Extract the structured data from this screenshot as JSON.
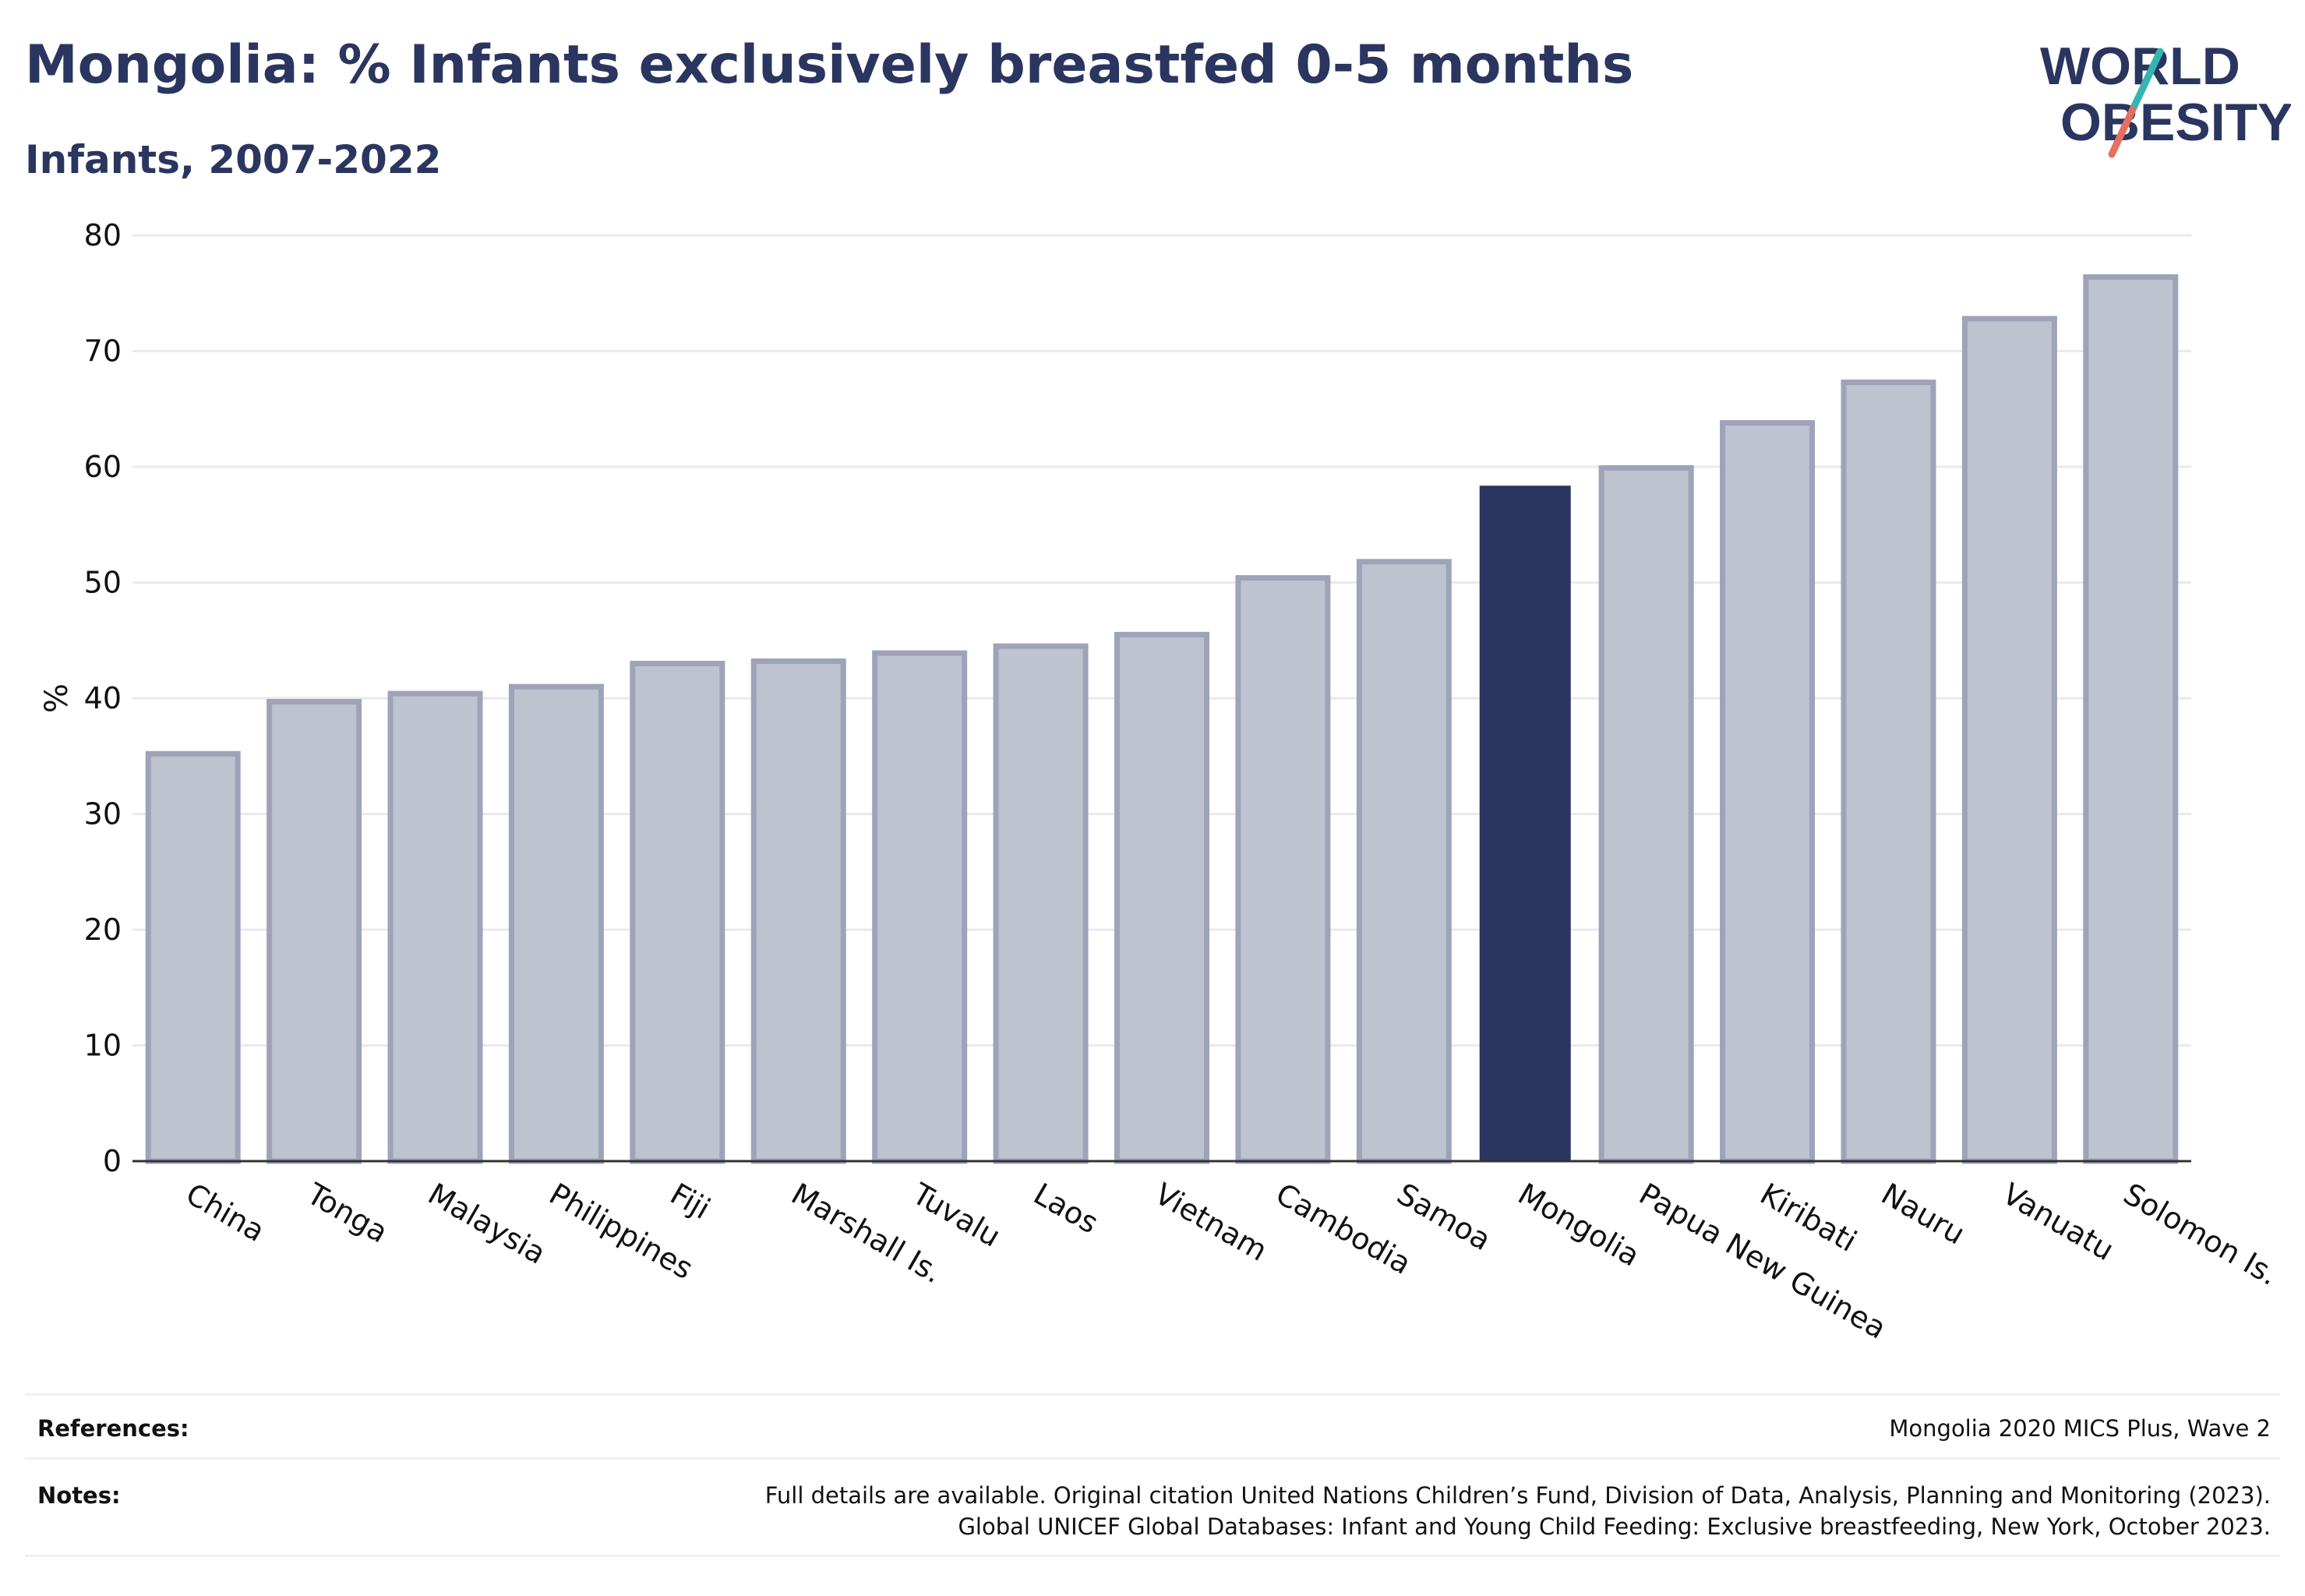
{
  "header": {
    "title": "Mongolia: % Infants exclusively breastfed 0-5 months",
    "subtitle": "Infants, 2007-2022"
  },
  "logo": {
    "line1": "WORLD",
    "line2": "OBESITY",
    "colors": {
      "text": "#2a3560",
      "teal": "#35b5b1",
      "coral": "#e4705f"
    }
  },
  "colors": {
    "bar": "#bfc2cf",
    "bar_border": "#9ea3b8",
    "highlight": "#2a3560",
    "grid": "#e9eaf0",
    "axis": "#333333",
    "tick_text": "#111111"
  },
  "chart_data": {
    "type": "bar",
    "categories": [
      "China",
      "Tonga",
      "Malaysia",
      "Philippines",
      "Fiji",
      "Marshall Is.",
      "Tuvalu",
      "Laos",
      "Vietnam",
      "Cambodia",
      "Samoa",
      "Mongolia",
      "Papua New Guinea",
      "Kiribati",
      "Nauru",
      "Vanuatu",
      "Solomon Is."
    ],
    "values": [
      35.2,
      39.7,
      40.4,
      41.0,
      43.0,
      43.2,
      43.9,
      44.5,
      45.5,
      50.4,
      51.8,
      58.3,
      59.9,
      63.8,
      67.3,
      72.8,
      76.4
    ],
    "highlight": "Mongolia",
    "title": "Mongolia: % Infants exclusively breastfed 0-5 months",
    "subtitle": "Infants, 2007-2022",
    "xlabel": "",
    "ylabel": "%",
    "ylim": [
      0,
      80
    ],
    "yticks": [
      0,
      10,
      20,
      30,
      40,
      50,
      60,
      70,
      80
    ],
    "grid": true
  },
  "footer": {
    "references_label": "References:",
    "references_text": "Mongolia 2020 MICS Plus, Wave 2",
    "notes_label": "Notes:",
    "notes_line1": "Full details are available. Original citation United Nations Children’s Fund, Division of Data, Analysis, Planning and Monitoring (2023).",
    "notes_line2": "Global UNICEF Global Databases: Infant and Young Child Feeding: Exclusive breastfeeding, New York, October 2023."
  }
}
